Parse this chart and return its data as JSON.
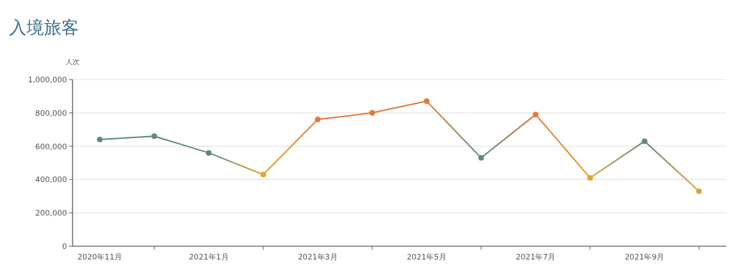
{
  "chart_data": {
    "type": "line",
    "title": "入境旅客",
    "ylabel": "人次",
    "categories": [
      "2020年11月",
      null,
      "2021年1月",
      null,
      "2021年3月",
      null,
      "2021年5月",
      null,
      "2021年7月",
      null,
      "2021年9月",
      null
    ],
    "values": [
      640000,
      660000,
      560000,
      430000,
      760000,
      800000,
      870000,
      530000,
      790000,
      410000,
      630000,
      330000
    ],
    "colors": [
      "#5d8a7e",
      "#5d8a7e",
      "#5d8a7e",
      "#e3a32e",
      "#e07b39",
      "#e07b39",
      "#e07b39",
      "#5d8a7e",
      "#e07b39",
      "#e3a32e",
      "#5d8a7e",
      "#e3a32e"
    ],
    "ylim": [
      0,
      1000000
    ],
    "yticks": [
      0,
      {
        "value": 200000,
        "label": "200,000"
      },
      {
        "value": 400000,
        "label": "400,000"
      },
      {
        "value": 600000,
        "label": "600,000"
      },
      {
        "value": 800000,
        "label": "800,000"
      },
      {
        "value": 1000000,
        "label": "1,000,000"
      }
    ],
    "grid": "y",
    "marker": "circle"
  }
}
